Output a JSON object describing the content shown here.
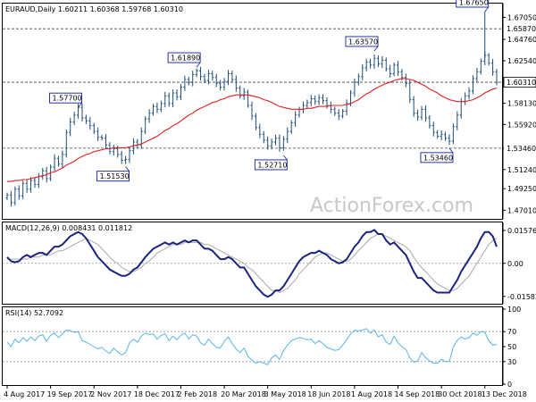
{
  "chart_data": [
    {
      "type": "ohlc",
      "name": "price",
      "header": "EURAUD,Daily  1.60211 1.60368 1.59768 1.60310",
      "ylim": [
        1.463,
        1.683
      ],
      "yticks": [
        "1.67050",
        "1.64760",
        "1.62540",
        "1.60310",
        "1.58130",
        "1.55920",
        "1.53460",
        "1.51240",
        "1.49250",
        "1.47010"
      ],
      "ytick_values": [
        1.6705,
        1.6476,
        1.6254,
        1.6031,
        1.5813,
        1.5592,
        1.5346,
        1.5124,
        1.4925,
        1.4701
      ],
      "highlight_ticks": [
        {
          "value": 1.6587,
          "text": "1.65870",
          "style": "plain"
        },
        {
          "value": 1.6031,
          "text": "1.60310",
          "style": "boxed"
        },
        {
          "value": 1.5346,
          "text": "1.53460",
          "style": "plain"
        }
      ],
      "hlines": [
        1.6587,
        1.6031,
        1.5346
      ],
      "annotations": [
        {
          "text": "1.57700",
          "x": 18,
          "y": 1.577,
          "pos": "above"
        },
        {
          "text": "1.51530",
          "x": 30,
          "y": 1.5153,
          "pos": "below"
        },
        {
          "text": "1.61890",
          "x": 48,
          "y": 1.6189,
          "pos": "above"
        },
        {
          "text": "1.52710",
          "x": 70,
          "y": 1.5271,
          "pos": "below"
        },
        {
          "text": "1.63570",
          "x": 93,
          "y": 1.6357,
          "pos": "above"
        },
        {
          "text": "1.53460",
          "x": 112,
          "y": 1.5346,
          "pos": "below"
        },
        {
          "text": "1.67650",
          "x": 121,
          "y": 1.6765,
          "pos": "above"
        }
      ],
      "close": [
        1.486,
        1.478,
        1.492,
        1.485,
        1.498,
        1.492,
        1.501,
        1.497,
        1.505,
        1.511,
        1.503,
        1.515,
        1.524,
        1.518,
        1.528,
        1.551,
        1.562,
        1.569,
        1.577,
        1.566,
        1.563,
        1.558,
        1.552,
        1.546,
        1.545,
        1.538,
        1.531,
        1.534,
        1.528,
        1.522,
        1.523,
        1.532,
        1.541,
        1.538,
        1.552,
        1.565,
        1.571,
        1.578,
        1.575,
        1.581,
        1.589,
        1.581,
        1.592,
        1.588,
        1.598,
        1.606,
        1.603,
        1.611,
        1.615,
        1.609,
        1.605,
        1.612,
        1.608,
        1.602,
        1.598,
        1.604,
        1.612,
        1.606,
        1.597,
        1.589,
        1.593,
        1.579,
        1.568,
        1.556,
        1.549,
        1.543,
        1.537,
        1.541,
        1.545,
        1.535,
        1.544,
        1.552,
        1.561,
        1.569,
        1.575,
        1.579,
        1.582,
        1.586,
        1.583,
        1.587,
        1.584,
        1.579,
        1.575,
        1.571,
        1.568,
        1.573,
        1.581,
        1.592,
        1.603,
        1.609,
        1.618,
        1.624,
        1.621,
        1.628,
        1.622,
        1.626,
        1.617,
        1.612,
        1.621,
        1.614,
        1.608,
        1.602,
        1.585,
        1.571,
        1.567,
        1.575,
        1.566,
        1.558,
        1.551,
        1.547,
        1.549,
        1.545,
        1.542,
        1.557,
        1.569,
        1.583,
        1.589,
        1.594,
        1.607,
        1.614,
        1.625,
        1.631,
        1.623,
        1.614,
        1.603
      ],
      "ma": [
        1.5,
        1.5,
        1.501,
        1.501,
        1.502,
        1.502,
        1.503,
        1.504,
        1.505,
        1.506,
        1.507,
        1.509,
        1.51,
        1.512,
        1.514,
        1.517,
        1.519,
        1.521,
        1.524,
        1.526,
        1.528,
        1.529,
        1.531,
        1.532,
        1.533,
        1.534,
        1.534,
        1.535,
        1.535,
        1.535,
        1.535,
        1.536,
        1.537,
        1.538,
        1.539,
        1.541,
        1.543,
        1.545,
        1.547,
        1.55,
        1.553,
        1.555,
        1.558,
        1.56,
        1.563,
        1.566,
        1.569,
        1.571,
        1.574,
        1.576,
        1.578,
        1.58,
        1.582,
        1.583,
        1.585,
        1.586,
        1.588,
        1.589,
        1.59,
        1.59,
        1.59,
        1.59,
        1.589,
        1.588,
        1.587,
        1.585,
        1.584,
        1.582,
        1.58,
        1.578,
        1.577,
        1.576,
        1.575,
        1.575,
        1.575,
        1.575,
        1.576,
        1.576,
        1.577,
        1.578,
        1.578,
        1.578,
        1.579,
        1.579,
        1.579,
        1.579,
        1.58,
        1.581,
        1.583,
        1.585,
        1.588,
        1.591,
        1.593,
        1.596,
        1.598,
        1.6,
        1.602,
        1.603,
        1.605,
        1.606,
        1.607,
        1.607,
        1.606,
        1.605,
        1.603,
        1.601,
        1.599,
        1.596,
        1.594,
        1.592,
        1.589,
        1.587,
        1.585,
        1.584,
        1.583,
        1.583,
        1.583,
        1.584,
        1.585,
        1.587,
        1.589,
        1.592,
        1.594,
        1.596,
        1.597
      ]
    },
    {
      "type": "line",
      "name": "macd",
      "header": "MACD(12,26,9) 0.008431 0.011812",
      "ylim": [
        -0.0185,
        0.0183
      ],
      "yticks": [
        "0.015762",
        "0.00",
        "-0.015834"
      ],
      "ytick_values": [
        0.015762,
        0.0,
        -0.015834
      ],
      "series": [
        {
          "name": "macd",
          "values": [
            0.003,
            0.001,
            0.0005,
            0.001,
            0.003,
            0.004,
            0.003,
            0.004,
            0.005,
            0.005,
            0.004,
            0.006,
            0.008,
            0.008,
            0.009,
            0.011,
            0.013,
            0.014,
            0.015,
            0.014,
            0.012,
            0.009,
            0.006,
            0.003,
            0.001,
            -0.001,
            -0.003,
            -0.004,
            -0.005,
            -0.006,
            -0.006,
            -0.005,
            -0.003,
            -0.002,
            0.0005,
            0.003,
            0.005,
            0.007,
            0.008,
            0.009,
            0.01,
            0.009,
            0.01,
            0.009,
            0.01,
            0.011,
            0.01,
            0.011,
            0.011,
            0.009,
            0.007,
            0.007,
            0.006,
            0.004,
            0.002,
            0.002,
            0.003,
            0.002,
            0.0,
            -0.002,
            -0.002,
            -0.005,
            -0.008,
            -0.011,
            -0.013,
            -0.015,
            -0.016,
            -0.015,
            -0.013,
            -0.013,
            -0.011,
            -0.008,
            -0.005,
            -0.002,
            0.001,
            0.003,
            0.004,
            0.005,
            0.005,
            0.006,
            0.005,
            0.004,
            0.002,
            0.001,
            0.0,
            0.0005,
            0.002,
            0.005,
            0.008,
            0.01,
            0.013,
            0.015,
            0.015,
            0.016,
            0.014,
            0.014,
            0.011,
            0.009,
            0.01,
            0.008,
            0.006,
            0.004,
            0.0,
            -0.004,
            -0.007,
            -0.007,
            -0.009,
            -0.011,
            -0.013,
            -0.014,
            -0.014,
            -0.014,
            -0.014,
            -0.011,
            -0.008,
            -0.004,
            -0.001,
            0.002,
            0.005,
            0.008,
            0.012,
            0.015,
            0.015,
            0.013,
            0.008
          ]
        },
        {
          "name": "signal",
          "values": [
            0.002,
            0.002,
            0.002,
            0.002,
            0.002,
            0.002,
            0.003,
            0.003,
            0.003,
            0.004,
            0.004,
            0.004,
            0.005,
            0.006,
            0.006,
            0.007,
            0.008,
            0.009,
            0.01,
            0.011,
            0.012,
            0.011,
            0.01,
            0.009,
            0.007,
            0.005,
            0.003,
            0.001,
            0.0,
            -0.002,
            -0.003,
            -0.004,
            -0.004,
            -0.003,
            -0.002,
            0.0,
            0.001,
            0.003,
            0.005,
            0.006,
            0.007,
            0.008,
            0.009,
            0.009,
            0.009,
            0.01,
            0.01,
            0.01,
            0.01,
            0.01,
            0.009,
            0.009,
            0.008,
            0.007,
            0.006,
            0.005,
            0.004,
            0.003,
            0.002,
            0.001,
            0.0,
            -0.002,
            -0.003,
            -0.005,
            -0.007,
            -0.009,
            -0.011,
            -0.013,
            -0.013,
            -0.014,
            -0.013,
            -0.012,
            -0.01,
            -0.008,
            -0.005,
            -0.003,
            -0.001,
            0.001,
            0.003,
            0.004,
            0.005,
            0.005,
            0.004,
            0.003,
            0.002,
            0.001,
            0.001,
            0.002,
            0.004,
            0.006,
            0.008,
            0.01,
            0.012,
            0.013,
            0.014,
            0.014,
            0.013,
            0.012,
            0.011,
            0.01,
            0.009,
            0.008,
            0.006,
            0.003,
            0.0,
            -0.002,
            -0.004,
            -0.006,
            -0.008,
            -0.01,
            -0.011,
            -0.012,
            -0.013,
            -0.013,
            -0.012,
            -0.01,
            -0.008,
            -0.006,
            -0.003,
            0.0,
            0.003,
            0.006,
            0.009,
            0.011,
            0.012
          ]
        }
      ]
    },
    {
      "type": "line",
      "name": "rsi",
      "header": "RSI(14) 52.7092",
      "ylim": [
        0,
        100
      ],
      "yticks": [
        "100",
        "70",
        "50",
        "30",
        "0"
      ],
      "ytick_values": [
        100,
        70,
        50,
        30,
        0
      ],
      "series": [
        {
          "name": "rsi",
          "values": [
            56,
            50,
            60,
            55,
            62,
            57,
            63,
            58,
            64,
            66,
            57,
            65,
            68,
            62,
            67,
            72,
            71,
            69,
            70,
            58,
            56,
            53,
            50,
            47,
            49,
            44,
            41,
            48,
            43,
            39,
            42,
            55,
            60,
            56,
            64,
            68,
            66,
            67,
            60,
            65,
            67,
            58,
            64,
            59,
            65,
            68,
            60,
            66,
            64,
            55,
            52,
            60,
            54,
            49,
            48,
            57,
            63,
            54,
            47,
            42,
            48,
            37,
            32,
            28,
            30,
            28,
            26,
            35,
            39,
            33,
            45,
            52,
            58,
            60,
            62,
            61,
            59,
            60,
            54,
            58,
            54,
            49,
            47,
            45,
            46,
            52,
            59,
            67,
            72,
            71,
            72,
            74,
            68,
            72,
            63,
            66,
            56,
            53,
            64,
            55,
            50,
            46,
            35,
            29,
            31,
            42,
            35,
            31,
            28,
            28,
            33,
            30,
            30,
            50,
            58,
            63,
            60,
            62,
            68,
            65,
            70,
            69,
            58,
            52,
            53
          ]
        }
      ]
    }
  ],
  "x_axis": {
    "labels": [
      "4 Aug 2017",
      "19 Sep 2017",
      "2 Nov 2017",
      "18 Dec 2017",
      "2 Feb 2018",
      "20 Mar 2018",
      "3 May 2018",
      "18 Jun 2018",
      "1 Aug 2018",
      "14 Sep 2018",
      "30 Oct 2018",
      "13 Dec 2018"
    ],
    "label_index": [
      0,
      11,
      22,
      33,
      44,
      55,
      66,
      77,
      88,
      99,
      110,
      121
    ]
  },
  "watermark": "ActionForex.com",
  "colors": {
    "bar": "#1f4e79",
    "ma": "#e02020",
    "macd": "#1a237e",
    "signal": "#aaaaaa",
    "rsi": "#58b4e8",
    "box_border": "#0d1fa0",
    "grid": "#999999"
  }
}
